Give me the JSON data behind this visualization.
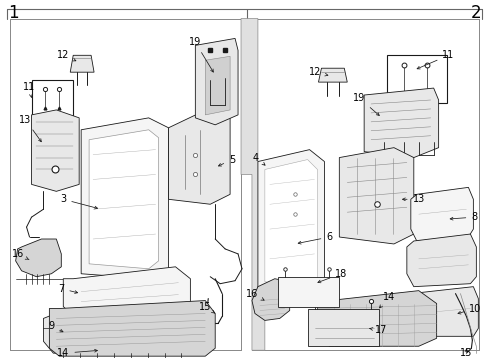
{
  "bg_color": "#ffffff",
  "fig_width": 4.89,
  "fig_height": 3.6,
  "dpi": 100,
  "lc": "#1a1a1a",
  "lw": 0.6,
  "fill_light": "#f5f5f5",
  "fill_mid": "#e8e8e8",
  "fill_dark": "#d5d5d5"
}
